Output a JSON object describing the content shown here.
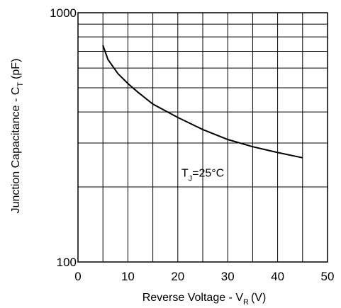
{
  "chart_data": {
    "type": "line",
    "title": "",
    "xlabel": {
      "main": "Reverse Voltage  - V",
      "sub": "R",
      "unit": "(V)"
    },
    "ylabel": {
      "main": "Junction Capacitance - C",
      "sub": "T",
      "unit": "(pF)"
    },
    "xlim": [
      0,
      50
    ],
    "ylim": [
      100,
      1000
    ],
    "yscale": "log",
    "grid": true,
    "x_ticks": [
      0,
      10,
      20,
      30,
      40,
      50
    ],
    "x_tick_labels": [
      "0",
      "10",
      "20",
      "30",
      "40",
      "50"
    ],
    "y_tick_labels": [
      {
        "value": 1000,
        "label": "1000"
      },
      {
        "value": 100,
        "label": "100"
      }
    ],
    "x_grid": [
      0,
      5,
      10,
      15,
      20,
      25,
      30,
      35,
      40,
      45,
      50
    ],
    "y_grid": [
      200,
      300,
      400,
      500,
      600,
      700,
      800,
      900
    ],
    "annotation": {
      "prefix": "T",
      "sub": "J",
      "text": "=25°C",
      "x": 25,
      "y": 220
    },
    "series": [
      {
        "name": "",
        "x": [
          5,
          6,
          8,
          10,
          12,
          15,
          20,
          25,
          30,
          35,
          40,
          45
        ],
        "y": [
          740,
          650,
          570,
          520,
          480,
          430,
          380,
          340,
          310,
          290,
          275,
          262
        ]
      }
    ]
  }
}
